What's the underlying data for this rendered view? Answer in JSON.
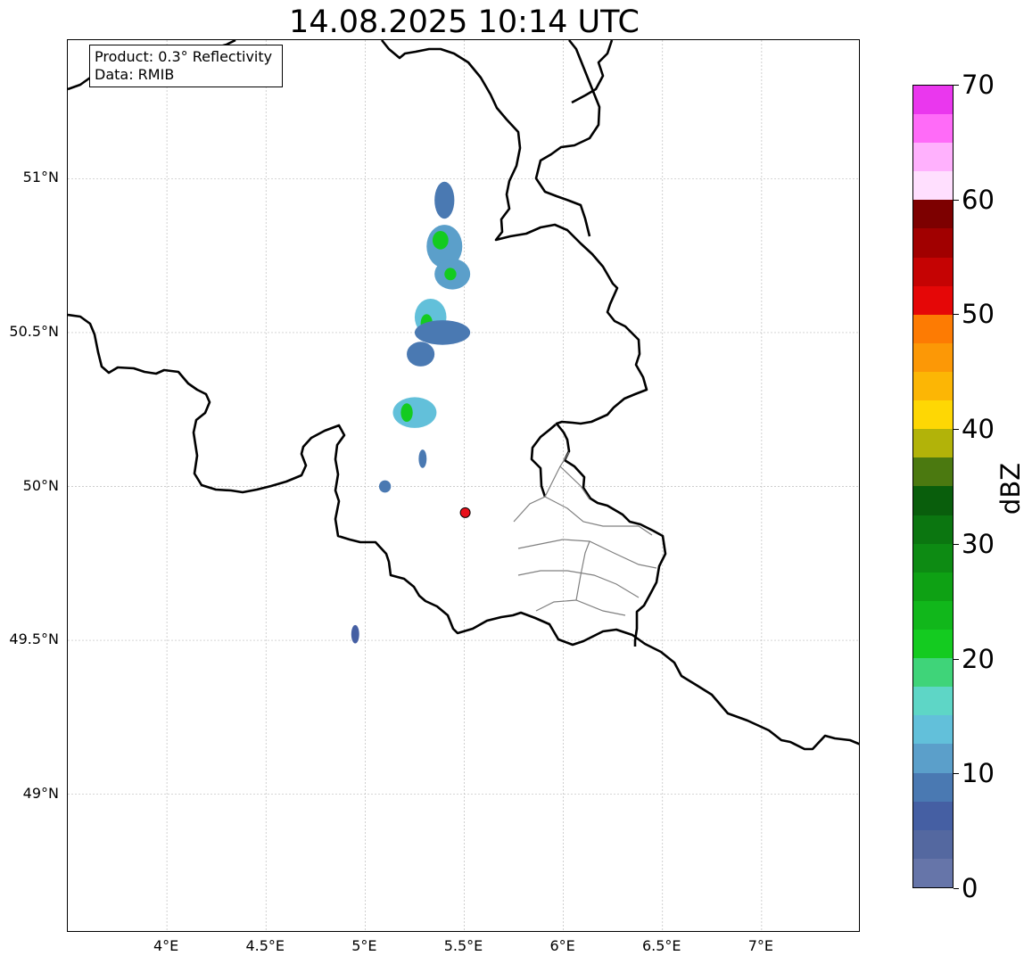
{
  "title": "14.08.2025 10:14 UTC",
  "info": {
    "product": "Product: 0.3° Reflectivity",
    "data": "Data: RMIB"
  },
  "map": {
    "lon_range": [
      3.5,
      7.5
    ],
    "lat_range": [
      48.55,
      51.45
    ],
    "lat_ticks": [
      {
        "value": 51.0,
        "label": "51°N"
      },
      {
        "value": 50.5,
        "label": "50.5°N"
      },
      {
        "value": 50.0,
        "label": "50°N"
      },
      {
        "value": 49.5,
        "label": "49.5°N"
      },
      {
        "value": 49.0,
        "label": "49°N"
      }
    ],
    "lon_ticks": [
      {
        "value": 4.0,
        "label": "4°E"
      },
      {
        "value": 4.5,
        "label": "4.5°E"
      },
      {
        "value": 5.0,
        "label": "5°E"
      },
      {
        "value": 5.5,
        "label": "5.5°E"
      },
      {
        "value": 6.0,
        "label": "6°E"
      },
      {
        "value": 6.5,
        "label": "6.5°E"
      },
      {
        "value": 7.0,
        "label": "7°E"
      }
    ],
    "radar_site": {
      "lon": 5.505,
      "lat": 49.915,
      "color": "#e8101a"
    },
    "echo_cells": [
      {
        "lon": 5.4,
        "lat": 50.93,
        "r_lon": 0.05,
        "r_lat": 0.06,
        "dbz": 8
      },
      {
        "lon": 5.4,
        "lat": 50.78,
        "r_lon": 0.09,
        "r_lat": 0.07,
        "dbz": 12
      },
      {
        "lon": 5.38,
        "lat": 50.8,
        "r_lon": 0.04,
        "r_lat": 0.03,
        "dbz": 22
      },
      {
        "lon": 5.44,
        "lat": 50.69,
        "r_lon": 0.09,
        "r_lat": 0.05,
        "dbz": 12
      },
      {
        "lon": 5.43,
        "lat": 50.69,
        "r_lon": 0.03,
        "r_lat": 0.02,
        "dbz": 22
      },
      {
        "lon": 5.33,
        "lat": 50.55,
        "r_lon": 0.08,
        "r_lat": 0.06,
        "dbz": 14
      },
      {
        "lon": 5.31,
        "lat": 50.53,
        "r_lon": 0.03,
        "r_lat": 0.03,
        "dbz": 22
      },
      {
        "lon": 5.39,
        "lat": 50.5,
        "r_lon": 0.14,
        "r_lat": 0.04,
        "dbz": 8
      },
      {
        "lon": 5.28,
        "lat": 50.43,
        "r_lon": 0.07,
        "r_lat": 0.04,
        "dbz": 9
      },
      {
        "lon": 5.25,
        "lat": 50.24,
        "r_lon": 0.11,
        "r_lat": 0.05,
        "dbz": 13
      },
      {
        "lon": 5.21,
        "lat": 50.24,
        "r_lon": 0.03,
        "r_lat": 0.03,
        "dbz": 22
      },
      {
        "lon": 5.29,
        "lat": 50.09,
        "r_lon": 0.02,
        "r_lat": 0.03,
        "dbz": 8
      },
      {
        "lon": 5.1,
        "lat": 50.0,
        "r_lon": 0.03,
        "r_lat": 0.02,
        "dbz": 8
      },
      {
        "lon": 4.95,
        "lat": 49.52,
        "r_lon": 0.02,
        "r_lat": 0.03,
        "dbz": 7
      }
    ]
  },
  "colorbar": {
    "label": "dBZ",
    "min": 0,
    "max": 70,
    "ticks": [
      {
        "value": 0,
        "label": "0"
      },
      {
        "value": 10,
        "label": "10"
      },
      {
        "value": 20,
        "label": "20"
      },
      {
        "value": 30,
        "label": "30"
      },
      {
        "value": 40,
        "label": "40"
      },
      {
        "value": 50,
        "label": "50"
      },
      {
        "value": 60,
        "label": "60"
      },
      {
        "value": 70,
        "label": "70"
      }
    ],
    "colors": [
      "#6675a9",
      "#5468a0",
      "#455fa3",
      "#4a79b2",
      "#5b9fca",
      "#62c0da",
      "#5ed6c6",
      "#3fd479",
      "#14cb20",
      "#11b71b",
      "#0ea114",
      "#0d8b13",
      "#0b7610",
      "#095e0c",
      "#4b7910",
      "#b2b309",
      "#fed704",
      "#fcb605",
      "#fc9806",
      "#fd7b03",
      "#e50707",
      "#c50303",
      "#a10000",
      "#7d0000",
      "#ffdffe",
      "#ffb1fd",
      "#ff6bf8",
      "#ea37ee"
    ]
  }
}
